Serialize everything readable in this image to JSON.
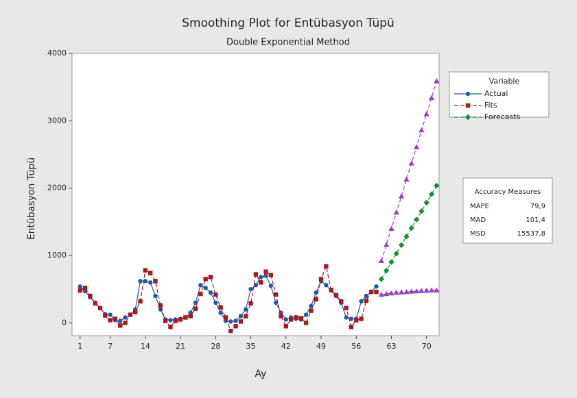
{
  "chart_data": {
    "type": "line",
    "title": "Smoothing Plot for Entübasyon Tüpü",
    "subtitle": "Double Exponential Method",
    "x_label": "Ay",
    "y_label": "Entübasyon Tüpü",
    "x": [
      1,
      2,
      3,
      4,
      5,
      6,
      7,
      8,
      9,
      10,
      11,
      12,
      13,
      14,
      15,
      16,
      17,
      18,
      19,
      20,
      21,
      22,
      23,
      24,
      25,
      26,
      27,
      28,
      29,
      30,
      31,
      32,
      33,
      34,
      35,
      36,
      37,
      38,
      39,
      40,
      41,
      42,
      43,
      44,
      45,
      46,
      47,
      48,
      49,
      50,
      51,
      52,
      53,
      54,
      55,
      56,
      57,
      58,
      59,
      60,
      61,
      62,
      63,
      64,
      65,
      66,
      67,
      68,
      69,
      70,
      71,
      72
    ],
    "xlim": [
      -0.6,
      72.5
    ],
    "xticks": [
      1,
      7,
      14,
      21,
      28,
      35,
      42,
      49,
      56,
      63,
      70
    ],
    "ylim": [
      -190,
      4000
    ],
    "yticks": [
      0,
      1000,
      2000,
      3000,
      4000
    ],
    "legend_title": "Variable",
    "series": [
      {
        "name": "Actual",
        "color": "#1f5aa6",
        "marker": "circle",
        "dash": false,
        "values": [
          540,
          470,
          380,
          300,
          220,
          130,
          120,
          40,
          30,
          80,
          120,
          200,
          620,
          620,
          600,
          400,
          200,
          50,
          40,
          50,
          60,
          80,
          150,
          300,
          560,
          520,
          450,
          300,
          150,
          30,
          20,
          30,
          100,
          200,
          500,
          560,
          680,
          700,
          550,
          300,
          150,
          50,
          80,
          60,
          50,
          120,
          250,
          450,
          620,
          560,
          480,
          400,
          300,
          80,
          60,
          60,
          320,
          400,
          460,
          540,
          null,
          null,
          null,
          null,
          null,
          null,
          null,
          null,
          null,
          null,
          null,
          null
        ]
      },
      {
        "name": "Fits",
        "color": "#a31a22",
        "marker": "square",
        "dash": true,
        "values": [
          480,
          520,
          400,
          290,
          220,
          110,
          40,
          60,
          -40,
          0,
          120,
          160,
          320,
          780,
          740,
          620,
          260,
          30,
          -60,
          30,
          50,
          80,
          100,
          210,
          430,
          650,
          680,
          420,
          230,
          80,
          -120,
          -50,
          20,
          100,
          290,
          720,
          600,
          760,
          710,
          420,
          100,
          -50,
          50,
          80,
          70,
          0,
          180,
          350,
          650,
          840,
          490,
          410,
          320,
          220,
          -60,
          40,
          60,
          330,
          460,
          460,
          null,
          null,
          null,
          null,
          null,
          null,
          null,
          null,
          null,
          null,
          null,
          null
        ]
      },
      {
        "name": "Forecasts",
        "color": "#1e8a3a",
        "marker": "diamond",
        "dash": true,
        "values": [
          null,
          null,
          null,
          null,
          null,
          null,
          null,
          null,
          null,
          null,
          null,
          null,
          null,
          null,
          null,
          null,
          null,
          null,
          null,
          null,
          null,
          null,
          null,
          null,
          null,
          null,
          null,
          null,
          null,
          null,
          null,
          null,
          null,
          null,
          null,
          null,
          null,
          null,
          null,
          null,
          null,
          null,
          null,
          null,
          null,
          null,
          null,
          null,
          null,
          null,
          null,
          null,
          null,
          null,
          null,
          null,
          null,
          null,
          null,
          null,
          650,
          776,
          902,
          1028,
          1155,
          1281,
          1407,
          1533,
          1659,
          1785,
          1911,
          2037
        ]
      },
      {
        "color": "#9b40b8",
        "marker": "triangle",
        "dash": true,
        "values": [
          null,
          null,
          null,
          null,
          null,
          null,
          null,
          null,
          null,
          null,
          null,
          null,
          null,
          null,
          null,
          null,
          null,
          null,
          null,
          null,
          null,
          null,
          null,
          null,
          null,
          null,
          null,
          null,
          null,
          null,
          null,
          null,
          null,
          null,
          null,
          null,
          null,
          null,
          null,
          null,
          null,
          null,
          null,
          null,
          null,
          null,
          null,
          null,
          null,
          null,
          null,
          null,
          null,
          null,
          null,
          null,
          null,
          null,
          null,
          null,
          920,
          1160,
          1400,
          1640,
          1880,
          2130,
          2370,
          2610,
          2860,
          3100,
          3340,
          3590
        ]
      },
      {
        "color": "#9b40b8",
        "marker": "triangle",
        "dash": true,
        "values": [
          null,
          null,
          null,
          null,
          null,
          null,
          null,
          null,
          null,
          null,
          null,
          null,
          null,
          null,
          null,
          null,
          null,
          null,
          null,
          null,
          null,
          null,
          null,
          null,
          null,
          null,
          null,
          null,
          null,
          null,
          null,
          null,
          null,
          null,
          null,
          null,
          null,
          null,
          null,
          null,
          null,
          null,
          null,
          null,
          null,
          null,
          null,
          null,
          null,
          null,
          null,
          null,
          null,
          null,
          null,
          null,
          null,
          null,
          null,
          null,
          420,
          430,
          440,
          450,
          455,
          460,
          465,
          470,
          475,
          480,
          485,
          485
        ]
      }
    ],
    "accuracy": {
      "title": "Accuracy Measures",
      "rows": [
        [
          "MAPE",
          "79,9"
        ],
        [
          "MAD",
          "101,4"
        ],
        [
          "MSD",
          "15537,8"
        ]
      ]
    }
  }
}
